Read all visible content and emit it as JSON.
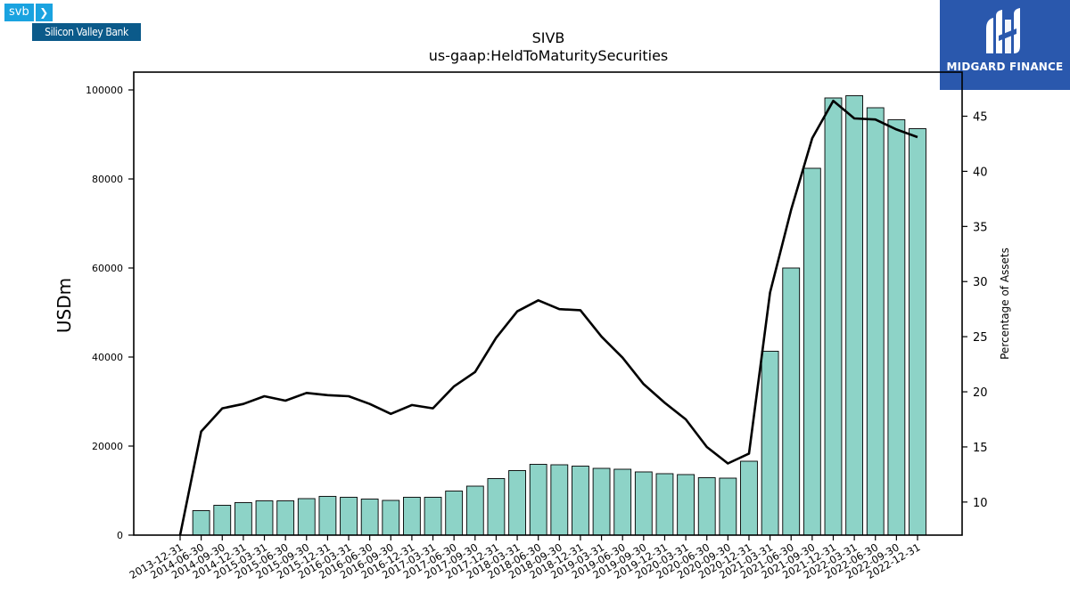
{
  "brand_left": {
    "svb": "svb",
    "chevron": "❯",
    "bank": "Silicon Valley Bank"
  },
  "brand_right": {
    "text": "MIDGARD FINANCE"
  },
  "chart_data": {
    "type": "bar",
    "title": "SIVB",
    "subtitle": "us-gaap:HeldToMaturitySecurities",
    "ylabel": "USDm",
    "y2label": "Percentage of Assets",
    "ylim": [
      0,
      104000
    ],
    "y2lim": [
      7.0,
      49.0
    ],
    "yticks": [
      0,
      20000,
      40000,
      60000,
      80000,
      100000
    ],
    "y2ticks": [
      10,
      15,
      20,
      25,
      30,
      35,
      40,
      45
    ],
    "categories": [
      "2013-12-31",
      "2014-06-30",
      "2014-09-30",
      "2014-12-31",
      "2015-03-31",
      "2015-06-30",
      "2015-09-30",
      "2015-12-31",
      "2016-03-31",
      "2016-06-30",
      "2016-09-30",
      "2016-12-31",
      "2017-03-31",
      "2017-06-30",
      "2017-09-30",
      "2017-12-31",
      "2018-03-31",
      "2018-06-30",
      "2018-09-30",
      "2018-12-31",
      "2019-03-31",
      "2019-06-30",
      "2019-09-30",
      "2019-12-31",
      "2020-03-31",
      "2020-06-30",
      "2020-09-30",
      "2020-12-31",
      "2021-03-31",
      "2021-06-30",
      "2021-09-30",
      "2021-12-31",
      "2022-03-31",
      "2022-06-30",
      "2022-09-30",
      "2022-12-31"
    ],
    "series": [
      {
        "type": "bar",
        "color": "#8dd3c7",
        "values": [
          0,
          5500,
          6700,
          7300,
          7700,
          7700,
          8200,
          8700,
          8500,
          8100,
          7800,
          8500,
          8500,
          9900,
          11000,
          12700,
          14500,
          15900,
          15800,
          15500,
          15000,
          14800,
          14200,
          13800,
          13600,
          12900,
          12800,
          16600,
          41300,
          60000,
          82400,
          98200,
          98700,
          96000,
          93300,
          91300
        ]
      },
      {
        "type": "line",
        "axis": "right",
        "color": "#000000",
        "values": [
          7.0,
          16.4,
          18.5,
          18.9,
          19.6,
          19.2,
          19.9,
          19.7,
          19.6,
          18.9,
          18.0,
          18.8,
          18.5,
          20.5,
          21.8,
          24.9,
          27.3,
          28.3,
          27.5,
          27.4,
          25.0,
          23.1,
          20.7,
          19.0,
          17.5,
          15.0,
          13.5,
          14.4,
          29.0,
          36.5,
          43.0,
          46.4,
          44.8,
          44.7,
          43.8,
          43.1
        ]
      }
    ],
    "grid": false,
    "legend": "none"
  }
}
